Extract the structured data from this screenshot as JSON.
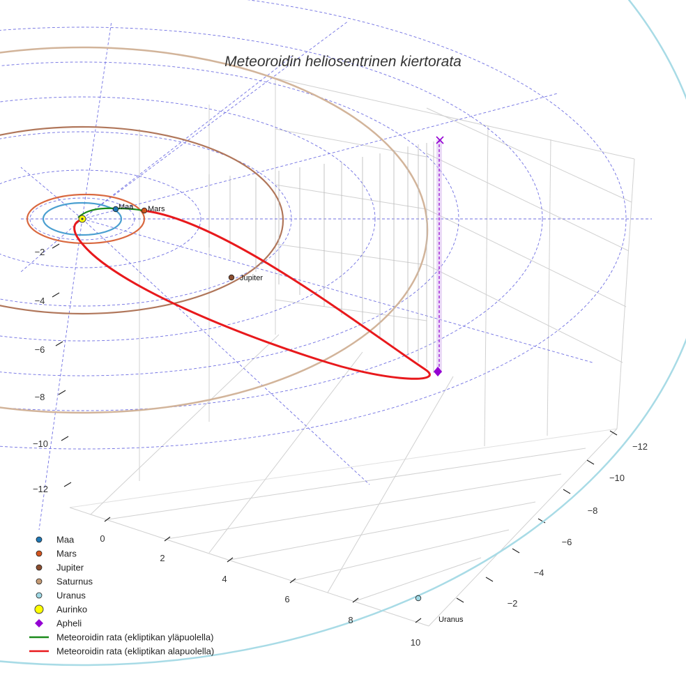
{
  "chart_data": {
    "type": "scatter3d",
    "title": "Meteoroidin heliosentrinen kiertorata",
    "x_ticks": [
      "0",
      "2",
      "4",
      "6",
      "8",
      "10"
    ],
    "y_ticks": [
      "−12",
      "−10",
      "−8",
      "−6",
      "−4",
      "−2"
    ],
    "z_ticks": [
      "−2",
      "−4",
      "−6",
      "−8",
      "−10",
      "−12"
    ],
    "planets": [
      {
        "name": "Maa",
        "label": "Maa",
        "color": "#1f77b4",
        "orbit_color": "#4a9fd0",
        "orbit_radius_au": 1.0
      },
      {
        "name": "Mars",
        "label": "Mars",
        "color": "#d2541e",
        "orbit_color": "#d9683f",
        "orbit_radius_au": 1.52
      },
      {
        "name": "Jupiter",
        "label": "Jupiter",
        "color": "#8b4e2f",
        "orbit_color": "#b0765a",
        "orbit_radius_au": 5.2
      },
      {
        "name": "Saturnus",
        "label": "",
        "color": "#c49a74",
        "orbit_color": "#d2b49a",
        "orbit_radius_au": 9.58
      },
      {
        "name": "Uranus",
        "label": "Uranus",
        "color": "#9fd8e4",
        "orbit_color": "#a8dbe6",
        "orbit_radius_au": 19.2
      }
    ],
    "sun": {
      "name": "Aurinko",
      "color": "#ffff00"
    },
    "aphelion": {
      "name": "Apheli",
      "color": "#9400d3"
    },
    "meteoroid_orbit": [
      {
        "name": "Meteoroidin rata (ekliptikan yläpuolella)",
        "color": "#1a8a1a"
      },
      {
        "name": "Meteoroidin rata (ekliptikan alapuolella)",
        "color": "#e8191c"
      }
    ]
  },
  "legend": [
    {
      "label": "Maa",
      "marker": "circle",
      "color": "#1f77b4"
    },
    {
      "label": "Mars",
      "marker": "circle",
      "color": "#d2541e"
    },
    {
      "label": "Jupiter",
      "marker": "circle",
      "color": "#8b4e2f"
    },
    {
      "label": "Saturnus",
      "marker": "circle",
      "color": "#c49a74"
    },
    {
      "label": "Uranus",
      "marker": "circle",
      "color": "#9fd8e4"
    },
    {
      "label": "Aurinko",
      "marker": "sun",
      "color": "#ffff00"
    },
    {
      "label": "Apheli",
      "marker": "diamond",
      "color": "#9400d3"
    },
    {
      "label": "Meteoroidin rata (ekliptikan yläpuolella)",
      "marker": "line",
      "color": "#1a8a1a"
    },
    {
      "label": "Meteoroidin rata (ekliptikan alapuolella)",
      "marker": "line",
      "color": "#e8191c"
    }
  ]
}
